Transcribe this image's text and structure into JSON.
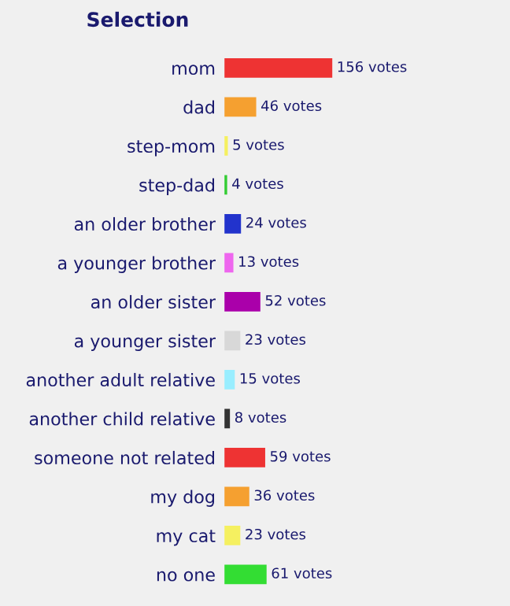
{
  "chart_data": {
    "type": "bar",
    "orientation": "horizontal",
    "title": "Selection",
    "categories": [
      "mom",
      "dad",
      "step-mom",
      "step-dad",
      "an older brother",
      "a younger brother",
      "an older sister",
      "a younger sister",
      "another adult relative",
      "another child relative",
      "someone not related",
      "my dog",
      "my cat",
      "no one"
    ],
    "values": [
      156,
      46,
      5,
      4,
      24,
      13,
      52,
      23,
      15,
      8,
      59,
      36,
      23,
      61
    ],
    "value_labels": [
      "156 votes",
      "46 votes",
      "5 votes",
      "4 votes",
      "24 votes",
      "13 votes",
      "52 votes",
      "23 votes",
      "15 votes",
      "8 votes",
      "59 votes",
      "36 votes",
      "23 votes",
      "61 votes"
    ],
    "colors": [
      "#ee3333",
      "#f5a030",
      "#f5f060",
      "#33cc33",
      "#2233cc",
      "#ee66ee",
      "#aa00aa",
      "#d8d8d8",
      "#99eeff",
      "#333333",
      "#ee3333",
      "#f5a030",
      "#f5f060",
      "#33dd33"
    ]
  }
}
